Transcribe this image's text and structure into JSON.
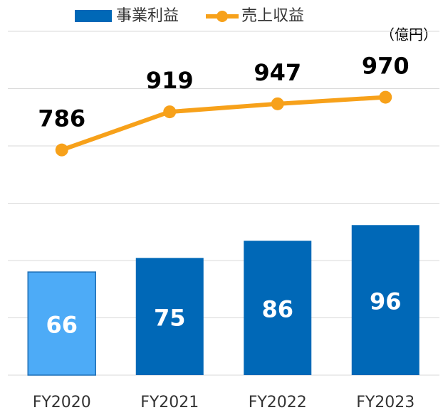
{
  "chart_data": {
    "type": "bar_line",
    "unit_label": "（億円）",
    "categories": [
      "FY2020",
      "FY2021",
      "FY2022",
      "FY2023"
    ],
    "series": [
      {
        "name": "事業利益",
        "type": "bar",
        "color": "#0068b7",
        "colors": [
          "#4dabf7",
          "#0068b7",
          "#0068b7",
          "#0068b7"
        ],
        "values": [
          66,
          75,
          86,
          96
        ]
      },
      {
        "name": "売上収益",
        "type": "line",
        "axis": "y2",
        "color": "#f7a11a",
        "values": [
          786,
          919,
          947,
          970
        ]
      }
    ],
    "ylim": [
      0,
      220
    ],
    "y2lim": [
      0,
      1200
    ],
    "y2ticks": [
      0,
      200,
      400,
      600,
      800,
      1000,
      1200
    ],
    "grid": true,
    "legend": "top"
  }
}
